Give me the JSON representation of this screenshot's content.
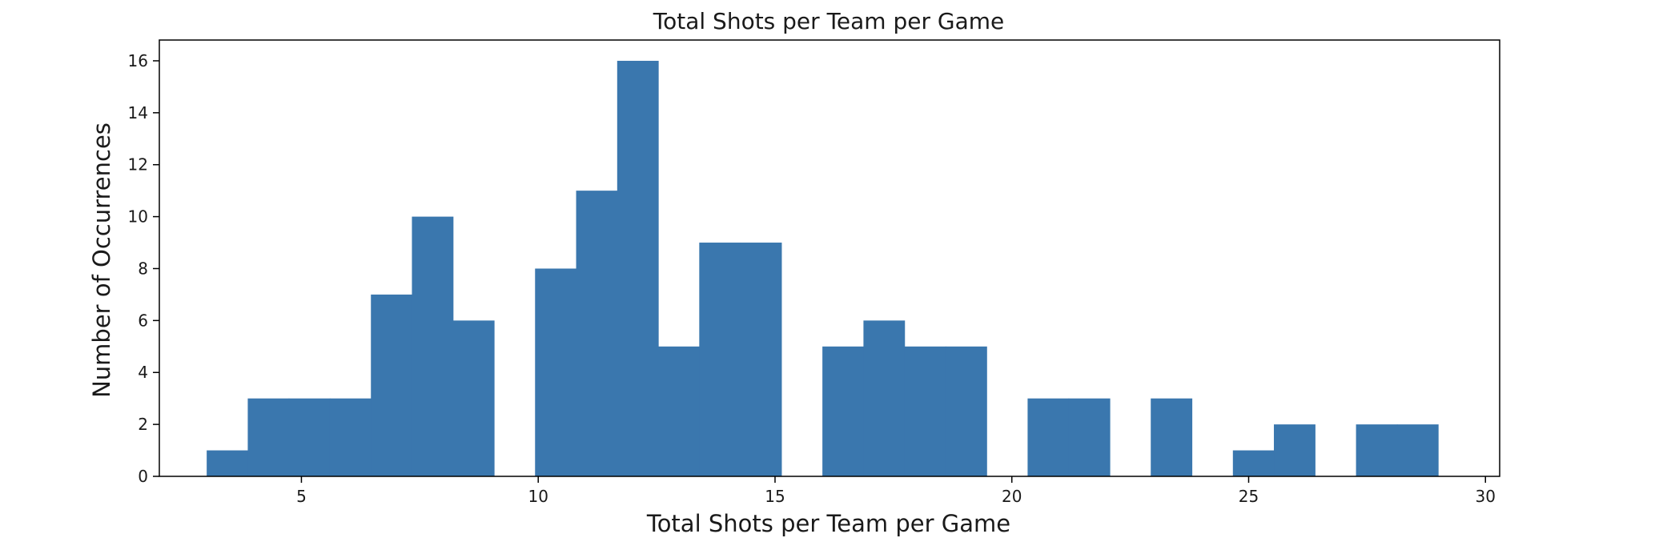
{
  "chart_data": {
    "type": "bar",
    "title": "Total Shots per Team per Game",
    "xlabel": "Total Shots per Team per Game",
    "ylabel": "Number of Occurrences",
    "xlim": [
      2,
      30.3
    ],
    "ylim": [
      0,
      16.8
    ],
    "xticks": [
      5,
      10,
      15,
      20,
      25,
      30
    ],
    "yticks": [
      0,
      2,
      4,
      6,
      8,
      10,
      12,
      14,
      16
    ],
    "grid": false,
    "color": "#3a77ae",
    "bins": [
      {
        "x0": 3.0,
        "x1": 3.867,
        "count": 1
      },
      {
        "x0": 3.867,
        "x1": 4.733,
        "count": 3
      },
      {
        "x0": 4.733,
        "x1": 5.6,
        "count": 3
      },
      {
        "x0": 5.6,
        "x1": 6.467,
        "count": 3
      },
      {
        "x0": 6.467,
        "x1": 7.333,
        "count": 7
      },
      {
        "x0": 7.333,
        "x1": 8.2,
        "count": 10
      },
      {
        "x0": 8.2,
        "x1": 9.067,
        "count": 6
      },
      {
        "x0": 9.933,
        "x1": 10.8,
        "count": 8
      },
      {
        "x0": 10.8,
        "x1": 11.667,
        "count": 11
      },
      {
        "x0": 11.667,
        "x1": 12.533,
        "count": 16
      },
      {
        "x0": 12.533,
        "x1": 13.4,
        "count": 5
      },
      {
        "x0": 13.4,
        "x1": 14.267,
        "count": 9
      },
      {
        "x0": 14.267,
        "x1": 15.133,
        "count": 9
      },
      {
        "x0": 16.0,
        "x1": 16.867,
        "count": 5
      },
      {
        "x0": 16.867,
        "x1": 17.733,
        "count": 6
      },
      {
        "x0": 17.733,
        "x1": 18.6,
        "count": 5
      },
      {
        "x0": 18.6,
        "x1": 19.467,
        "count": 5
      },
      {
        "x0": 20.333,
        "x1": 21.2,
        "count": 3
      },
      {
        "x0": 21.2,
        "x1": 22.067,
        "count": 3
      },
      {
        "x0": 22.933,
        "x1": 23.8,
        "count": 3
      },
      {
        "x0": 24.667,
        "x1": 25.533,
        "count": 1
      },
      {
        "x0": 25.533,
        "x1": 26.4,
        "count": 2
      },
      {
        "x0": 27.267,
        "x1": 28.133,
        "count": 2
      },
      {
        "x0": 28.133,
        "x1": 29.0,
        "count": 2
      }
    ]
  }
}
